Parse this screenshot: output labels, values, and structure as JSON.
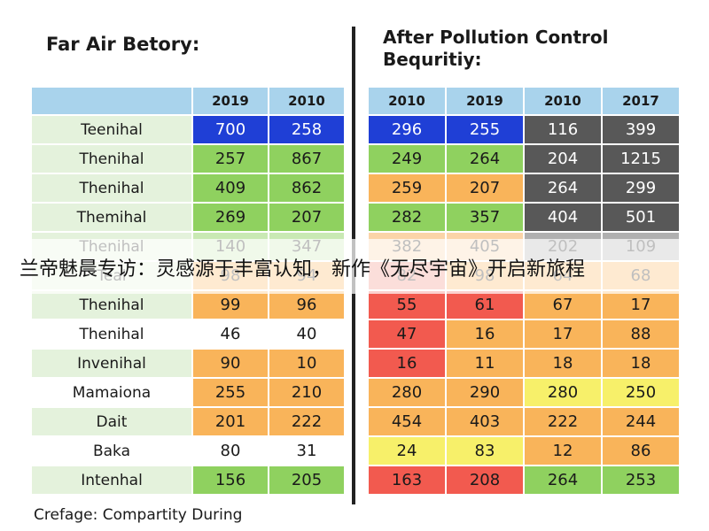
{
  "chart_data": [
    {
      "type": "table",
      "title": "Far Air Betory:",
      "columns": [
        "",
        "2019",
        "2010"
      ],
      "rows": [
        {
          "label": "Teenihal",
          "values": [
            "700",
            "258"
          ],
          "colors": [
            "#1f3fd6",
            "#1f3fd6"
          ]
        },
        {
          "label": "Thenihal",
          "values": [
            "257",
            "867"
          ],
          "colors": [
            "#8fd15f",
            "#8fd15f"
          ]
        },
        {
          "label": "Thenihal",
          "values": [
            "409",
            "862"
          ],
          "colors": [
            "#8fd15f",
            "#8fd15f"
          ]
        },
        {
          "label": "Themihal",
          "values": [
            "269",
            "207"
          ],
          "colors": [
            "#8fd15f",
            "#8fd15f"
          ]
        },
        {
          "label": "Thenihal",
          "values": [
            "140",
            "347"
          ],
          "colors": [
            "#c9e9b4",
            "#c9e9b4"
          ]
        },
        {
          "label": "Teal",
          "values": [
            "98",
            "94"
          ],
          "colors": [
            "#f9b45a",
            "#f9b45a"
          ]
        },
        {
          "label": "Thenihal",
          "values": [
            "99",
            "96"
          ],
          "colors": [
            "#f9b45a",
            "#f9b45a"
          ]
        },
        {
          "label": "Thenihal",
          "values": [
            "46",
            "40"
          ],
          "colors": [
            "#ffffff",
            "#ffffff"
          ],
          "plain": true
        },
        {
          "label": "Invenihal",
          "values": [
            "90",
            "10"
          ],
          "colors": [
            "#f9b45a",
            "#f9b45a"
          ]
        },
        {
          "label": "Mamaiona",
          "values": [
            "255",
            "210"
          ],
          "colors": [
            "#f9b45a",
            "#f9b45a"
          ],
          "plain": true
        },
        {
          "label": "Dait",
          "values": [
            "201",
            "222"
          ],
          "colors": [
            "#f9b45a",
            "#f9b45a"
          ]
        },
        {
          "label": "Baka",
          "values": [
            "80",
            "31"
          ],
          "colors": [
            "#ffffff",
            "#ffffff"
          ],
          "plain": true
        },
        {
          "label": "Intenhal",
          "values": [
            "156",
            "205"
          ],
          "colors": [
            "#8fd15f",
            "#8fd15f"
          ]
        }
      ]
    },
    {
      "type": "table",
      "title": "After Pollution Control\nBequritiy:",
      "columns": [
        "2010",
        "2019",
        "2010",
        "2017"
      ],
      "rows": [
        {
          "values": [
            "296",
            "255",
            "116",
            "399"
          ],
          "colors": [
            "#1f3fd6",
            "#1f3fd6",
            "#585858",
            "#585858"
          ]
        },
        {
          "values": [
            "249",
            "264",
            "204",
            "1215"
          ],
          "colors": [
            "#8fd15f",
            "#8fd15f",
            "#585858",
            "#585858"
          ]
        },
        {
          "values": [
            "259",
            "207",
            "264",
            "299"
          ],
          "colors": [
            "#f9b45a",
            "#f9b45a",
            "#585858",
            "#585858"
          ]
        },
        {
          "values": [
            "282",
            "357",
            "404",
            "501"
          ],
          "colors": [
            "#8fd15f",
            "#8fd15f",
            "#585858",
            "#585858"
          ]
        },
        {
          "values": [
            "382",
            "405",
            "202",
            "109"
          ],
          "colors": [
            "#fbd4a8",
            "#fbd4a8",
            "#b0b0b0",
            "#b0b0b0"
          ]
        },
        {
          "values": [
            "82",
            "98",
            "64",
            "68"
          ],
          "colors": [
            "#f08a7a",
            "#f9b45a",
            "#f9b45a",
            "#f9b45a"
          ]
        },
        {
          "values": [
            "55",
            "61",
            "67",
            "17"
          ],
          "colors": [
            "#f25a4f",
            "#f25a4f",
            "#f9b45a",
            "#f9b45a"
          ]
        },
        {
          "values": [
            "47",
            "16",
            "17",
            "88"
          ],
          "colors": [
            "#f25a4f",
            "#f9b45a",
            "#f9b45a",
            "#f9b45a"
          ]
        },
        {
          "values": [
            "16",
            "11",
            "18",
            "18"
          ],
          "colors": [
            "#f25a4f",
            "#f9b45a",
            "#f9b45a",
            "#f9b45a"
          ]
        },
        {
          "values": [
            "280",
            "290",
            "280",
            "250"
          ],
          "colors": [
            "#f9b45a",
            "#f9b45a",
            "#f7f06a",
            "#f7f06a"
          ]
        },
        {
          "values": [
            "454",
            "403",
            "222",
            "244"
          ],
          "colors": [
            "#f9b45a",
            "#f9b45a",
            "#f9b45a",
            "#f9b45a"
          ]
        },
        {
          "values": [
            "24",
            "83",
            "12",
            "86"
          ],
          "colors": [
            "#f7f06a",
            "#f7f06a",
            "#f9b45a",
            "#f9b45a"
          ]
        },
        {
          "values": [
            "163",
            "208",
            "264",
            "253"
          ],
          "colors": [
            "#f25a4f",
            "#f25a4f",
            "#8fd15f",
            "#8fd15f"
          ]
        }
      ]
    }
  ],
  "caption": "Crefage: Compartity During",
  "banner": "兰帝魅晨专访：灵感源于丰富认知，新作《无尽宇宙》开启新旅程",
  "text_colors": {
    "on_dark": "#ffffff",
    "on_light": "#1a1a1a"
  }
}
